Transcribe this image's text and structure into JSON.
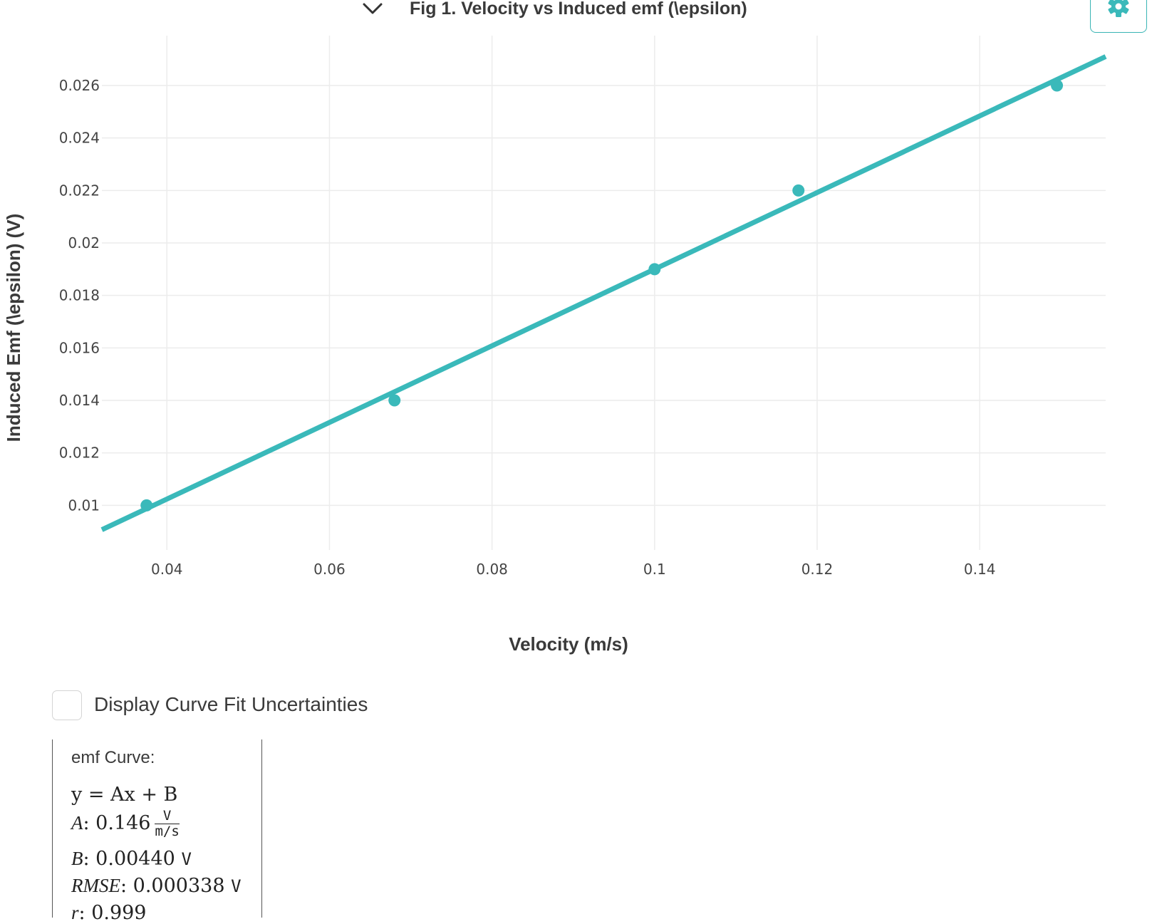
{
  "figure": {
    "title": "Fig 1. Velocity vs Induced emf (\\epsilon)"
  },
  "icons": {
    "collapse": "chevron-down-icon",
    "settings": "gear-icon"
  },
  "colors": {
    "accent": "#3ab9ba",
    "grid": "#ececec"
  },
  "chart_data": {
    "type": "scatter",
    "title": "Fig 1. Velocity vs Induced emf (\\epsilon)",
    "xlabel": "Velocity (m/s)",
    "ylabel": "Induced Emf (\\epsilon) (V)",
    "xlim": [
      0.032,
      0.1555
    ],
    "ylim": [
      0.0083,
      0.0279
    ],
    "grid": true,
    "x_ticks": [
      0.04,
      0.06,
      0.08,
      0.1,
      0.12,
      0.14
    ],
    "x_tick_labels": [
      "0.04",
      "0.06",
      "0.08",
      "0.1",
      "0.12",
      "0.14"
    ],
    "y_ticks": [
      0.01,
      0.012,
      0.014,
      0.016,
      0.018,
      0.02,
      0.022,
      0.024,
      0.026
    ],
    "y_tick_labels": [
      "0.01",
      "0.012",
      "0.014",
      "0.016",
      "0.018",
      "0.02",
      "0.022",
      "0.024",
      "0.026"
    ],
    "series": [
      {
        "x": [
          0.0375,
          0.068,
          0.1,
          0.1177,
          0.1495
        ],
        "y": [
          0.01,
          0.014,
          0.019,
          0.022,
          0.026
        ]
      }
    ],
    "fit": {
      "type": "linear",
      "slope": 0.146,
      "intercept": 0.0044
    }
  },
  "curve_fit": {
    "toggle_label": "Display Curve Fit Uncertainties",
    "toggle_checked": false,
    "heading": "emf Curve:",
    "equation": "y = Ax + B",
    "A_label": "A",
    "A_value": ": 0.146",
    "A_unit_num": "V",
    "A_unit_den": "m/s",
    "B_label": "B",
    "B_value": ": 0.00440",
    "B_unit": "V",
    "RMSE_label": "RMSE",
    "RMSE_value": ": 0.000338",
    "RMSE_unit": "V",
    "r_label": "r",
    "r_value": ": 0.999"
  }
}
